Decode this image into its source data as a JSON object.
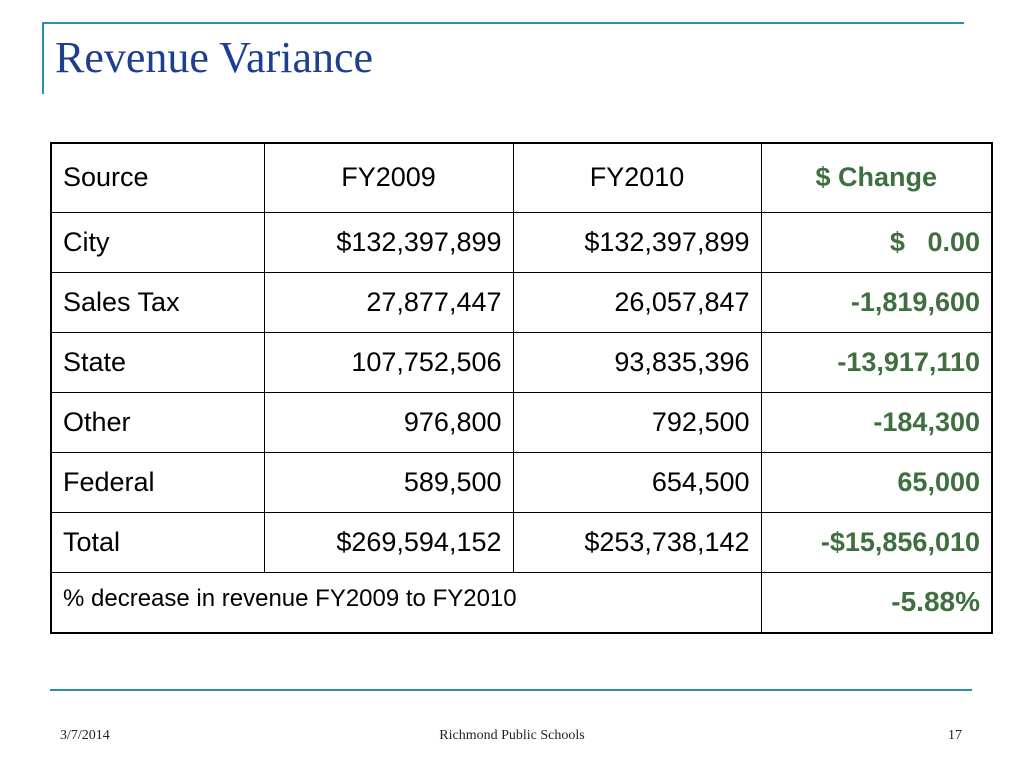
{
  "slide": {
    "title": "Revenue Variance",
    "colors": {
      "title": "#1d3f8f",
      "rule": "#2c8fa8",
      "change": "#3f6e3f"
    }
  },
  "table": {
    "headers": {
      "source": "Source",
      "fy2009": "FY2009",
      "fy2010": "FY2010",
      "change": "$ Change"
    },
    "rows": [
      {
        "source": "City",
        "fy2009": "$132,397,899",
        "fy2010": "$132,397,899",
        "change": "$   0.00"
      },
      {
        "source": "Sales Tax",
        "fy2009": "27,877,447",
        "fy2010": "26,057,847",
        "change": "-1,819,600"
      },
      {
        "source": "State",
        "fy2009": "107,752,506",
        "fy2010": "93,835,396",
        "change": "-13,917,110"
      },
      {
        "source": "Other",
        "fy2009": "976,800",
        "fy2010": "792,500",
        "change": "-184,300"
      },
      {
        "source": "Federal",
        "fy2009": "589,500",
        "fy2010": "654,500",
        "change": "65,000"
      },
      {
        "source": "Total",
        "fy2009": "$269,594,152",
        "fy2010": "$253,738,142",
        "change": "-$15,856,010"
      }
    ],
    "summary": {
      "label": "% decrease in revenue FY2009 to FY2010",
      "value": "-5.88%"
    }
  },
  "footer": {
    "date": "3/7/2014",
    "organization": "Richmond Public Schools",
    "page_number": "17"
  }
}
